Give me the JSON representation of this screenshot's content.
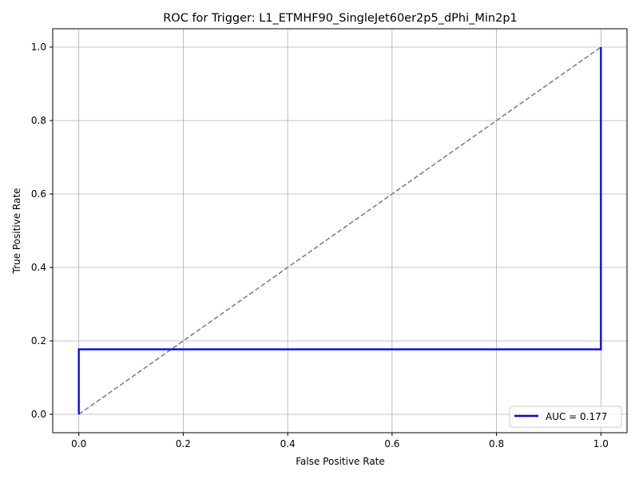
{
  "chart_data": {
    "type": "line",
    "title": "ROC for Trigger: L1_ETMHF90_SingleJet60er2p5_dPhi_Min2p1",
    "xlabel": "False Positive Rate",
    "ylabel": "True Positive Rate",
    "xlim": [
      -0.05,
      1.05
    ],
    "ylim": [
      -0.05,
      1.05
    ],
    "xticks": [
      0.0,
      0.2,
      0.4,
      0.6,
      0.8,
      1.0
    ],
    "yticks": [
      0.0,
      0.2,
      0.4,
      0.6,
      0.8,
      1.0
    ],
    "xtick_labels": [
      "0.0",
      "0.2",
      "0.4",
      "0.6",
      "0.8",
      "1.0"
    ],
    "ytick_labels": [
      "0.0",
      "0.2",
      "0.4",
      "0.6",
      "0.8",
      "1.0"
    ],
    "grid": true,
    "legend_position": "lower-right",
    "series": [
      {
        "name": "AUC = 0.177",
        "color": "#0000ff",
        "style": "solid",
        "x": [
          0.0,
          0.0,
          1.0,
          1.0
        ],
        "y": [
          0.0,
          0.177,
          0.177,
          1.0
        ]
      },
      {
        "color": "#808080",
        "style": "dashed",
        "x": [
          0.0,
          1.0
        ],
        "y": [
          0.0,
          1.0
        ]
      }
    ]
  }
}
